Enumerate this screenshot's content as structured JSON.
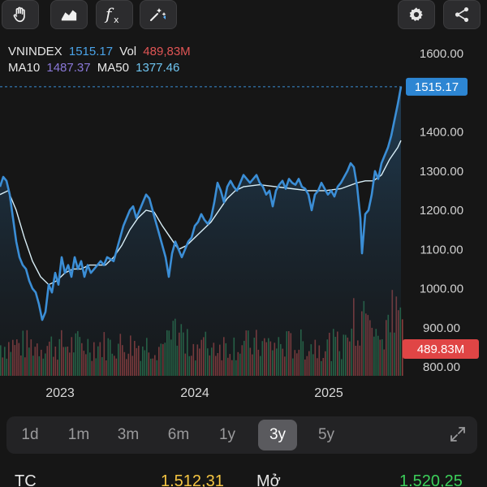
{
  "toolbar": {
    "left_buttons": [
      "hand-tool-icon",
      "area-chart-icon",
      "function-fx-icon",
      "magic-indicator-icon"
    ],
    "right_buttons": [
      "gear-icon",
      "share-icon"
    ],
    "fx_label": "fx"
  },
  "legend": {
    "symbol": "VNINDEX",
    "price": "1515.17",
    "vol_label": "Vol",
    "vol_value": "489,83M",
    "ma10_label": "MA10",
    "ma10_value": "1487.37",
    "ma50_label": "MA50",
    "ma50_value": "1377.46"
  },
  "chart_data": {
    "type": "line",
    "y_axis_ticks": [
      "1600.00",
      "1400.00",
      "1300.00",
      "1200.00",
      "1100.00",
      "1000.00",
      "900.00",
      "800.00"
    ],
    "y_ticks_values": [
      1600,
      1400,
      1300,
      1200,
      1100,
      1000,
      900,
      800
    ],
    "x_axis_ticks": [
      "2023",
      "2024",
      "2025"
    ],
    "ylim": [
      800,
      1600
    ],
    "last_price_label": "1515.17",
    "last_price": 1515.17,
    "volume_label": "489.83M",
    "colors": {
      "price": "#3b8ed6",
      "ma": "#d8eef7",
      "volume_up": "#2f8a5a",
      "volume_down": "#b14a4a",
      "price_label_bg": "#2d86d3",
      "volume_label_bg": "#e04545"
    },
    "price_series": [
      [
        0,
        1260
      ],
      [
        4,
        1285
      ],
      [
        8,
        1275
      ],
      [
        12,
        1240
      ],
      [
        16,
        1180
      ],
      [
        20,
        1120
      ],
      [
        24,
        1080
      ],
      [
        28,
        1060
      ],
      [
        32,
        1050
      ],
      [
        36,
        1020
      ],
      [
        40,
        1000
      ],
      [
        44,
        990
      ],
      [
        48,
        960
      ],
      [
        52,
        920
      ],
      [
        56,
        940
      ],
      [
        60,
        1010
      ],
      [
        64,
        990
      ],
      [
        68,
        1040
      ],
      [
        72,
        1010
      ],
      [
        76,
        1080
      ],
      [
        80,
        1040
      ],
      [
        84,
        1060
      ],
      [
        88,
        1030
      ],
      [
        92,
        1080
      ],
      [
        96,
        1050
      ],
      [
        100,
        1070
      ],
      [
        104,
        1030
      ],
      [
        108,
        1060
      ],
      [
        112,
        1040
      ],
      [
        116,
        1050
      ],
      [
        120,
        1060
      ],
      [
        124,
        1070
      ],
      [
        128,
        1060
      ],
      [
        132,
        1080
      ],
      [
        136,
        1075
      ],
      [
        140,
        1070
      ],
      [
        144,
        1100
      ],
      [
        148,
        1130
      ],
      [
        152,
        1160
      ],
      [
        156,
        1180
      ],
      [
        160,
        1200
      ],
      [
        164,
        1210
      ],
      [
        168,
        1180
      ],
      [
        172,
        1200
      ],
      [
        176,
        1220
      ],
      [
        180,
        1240
      ],
      [
        184,
        1230
      ],
      [
        188,
        1200
      ],
      [
        192,
        1170
      ],
      [
        196,
        1140
      ],
      [
        200,
        1110
      ],
      [
        204,
        1080
      ],
      [
        208,
        1030
      ],
      [
        212,
        1090
      ],
      [
        216,
        1120
      ],
      [
        220,
        1100
      ],
      [
        224,
        1080
      ],
      [
        228,
        1100
      ],
      [
        232,
        1120
      ],
      [
        236,
        1130
      ],
      [
        240,
        1160
      ],
      [
        244,
        1170
      ],
      [
        248,
        1190
      ],
      [
        252,
        1175
      ],
      [
        256,
        1165
      ],
      [
        260,
        1180
      ],
      [
        264,
        1220
      ],
      [
        268,
        1270
      ],
      [
        272,
        1250
      ],
      [
        276,
        1220
      ],
      [
        280,
        1260
      ],
      [
        284,
        1275
      ],
      [
        288,
        1260
      ],
      [
        292,
        1250
      ],
      [
        296,
        1270
      ],
      [
        300,
        1290
      ],
      [
        304,
        1280
      ],
      [
        308,
        1270
      ],
      [
        312,
        1280
      ],
      [
        316,
        1290
      ],
      [
        320,
        1270
      ],
      [
        324,
        1260
      ],
      [
        328,
        1240
      ],
      [
        332,
        1250
      ],
      [
        336,
        1210
      ],
      [
        340,
        1250
      ],
      [
        344,
        1265
      ],
      [
        348,
        1275
      ],
      [
        352,
        1255
      ],
      [
        356,
        1280
      ],
      [
        360,
        1270
      ],
      [
        364,
        1265
      ],
      [
        368,
        1280
      ],
      [
        372,
        1260
      ],
      [
        376,
        1255
      ],
      [
        380,
        1240
      ],
      [
        384,
        1200
      ],
      [
        388,
        1240
      ],
      [
        392,
        1250
      ],
      [
        396,
        1270
      ],
      [
        400,
        1255
      ],
      [
        404,
        1240
      ],
      [
        408,
        1250
      ],
      [
        412,
        1235
      ],
      [
        416,
        1260
      ],
      [
        420,
        1270
      ],
      [
        424,
        1285
      ],
      [
        428,
        1300
      ],
      [
        432,
        1320
      ],
      [
        436,
        1310
      ],
      [
        440,
        1260
      ],
      [
        444,
        1180
      ],
      [
        446,
        1090
      ],
      [
        450,
        1190
      ],
      [
        454,
        1200
      ],
      [
        458,
        1240
      ],
      [
        462,
        1300
      ],
      [
        466,
        1280
      ],
      [
        470,
        1320
      ],
      [
        474,
        1340
      ],
      [
        478,
        1360
      ],
      [
        482,
        1390
      ],
      [
        486,
        1430
      ],
      [
        490,
        1470
      ],
      [
        494,
        1515
      ]
    ],
    "ma_series": [
      [
        0,
        1240
      ],
      [
        10,
        1250
      ],
      [
        20,
        1200
      ],
      [
        30,
        1130
      ],
      [
        40,
        1070
      ],
      [
        50,
        1030
      ],
      [
        60,
        1010
      ],
      [
        70,
        1020
      ],
      [
        80,
        1040
      ],
      [
        90,
        1050
      ],
      [
        100,
        1050
      ],
      [
        110,
        1060
      ],
      [
        120,
        1060
      ],
      [
        130,
        1060
      ],
      [
        140,
        1080
      ],
      [
        150,
        1110
      ],
      [
        160,
        1150
      ],
      [
        170,
        1180
      ],
      [
        180,
        1200
      ],
      [
        190,
        1195
      ],
      [
        200,
        1160
      ],
      [
        210,
        1130
      ],
      [
        220,
        1100
      ],
      [
        230,
        1110
      ],
      [
        240,
        1130
      ],
      [
        250,
        1150
      ],
      [
        260,
        1170
      ],
      [
        270,
        1200
      ],
      [
        280,
        1230
      ],
      [
        290,
        1250
      ],
      [
        300,
        1260
      ],
      [
        320,
        1265
      ],
      [
        340,
        1260
      ],
      [
        360,
        1255
      ],
      [
        380,
        1250
      ],
      [
        400,
        1250
      ],
      [
        420,
        1255
      ],
      [
        440,
        1270
      ],
      [
        450,
        1275
      ],
      [
        460,
        1275
      ],
      [
        470,
        1290
      ],
      [
        480,
        1330
      ],
      [
        490,
        1360
      ],
      [
        494,
        1378
      ]
    ],
    "volume_note": "volume bars rendered along the bottom"
  },
  "periods": {
    "items": [
      "1d",
      "1m",
      "3m",
      "6m",
      "1y",
      "3y",
      "5y"
    ],
    "active": "3y"
  },
  "footer": {
    "left_label": "TC",
    "left_value": "1.512,31",
    "right_label": "Mở",
    "right_value": "1.520,25"
  }
}
